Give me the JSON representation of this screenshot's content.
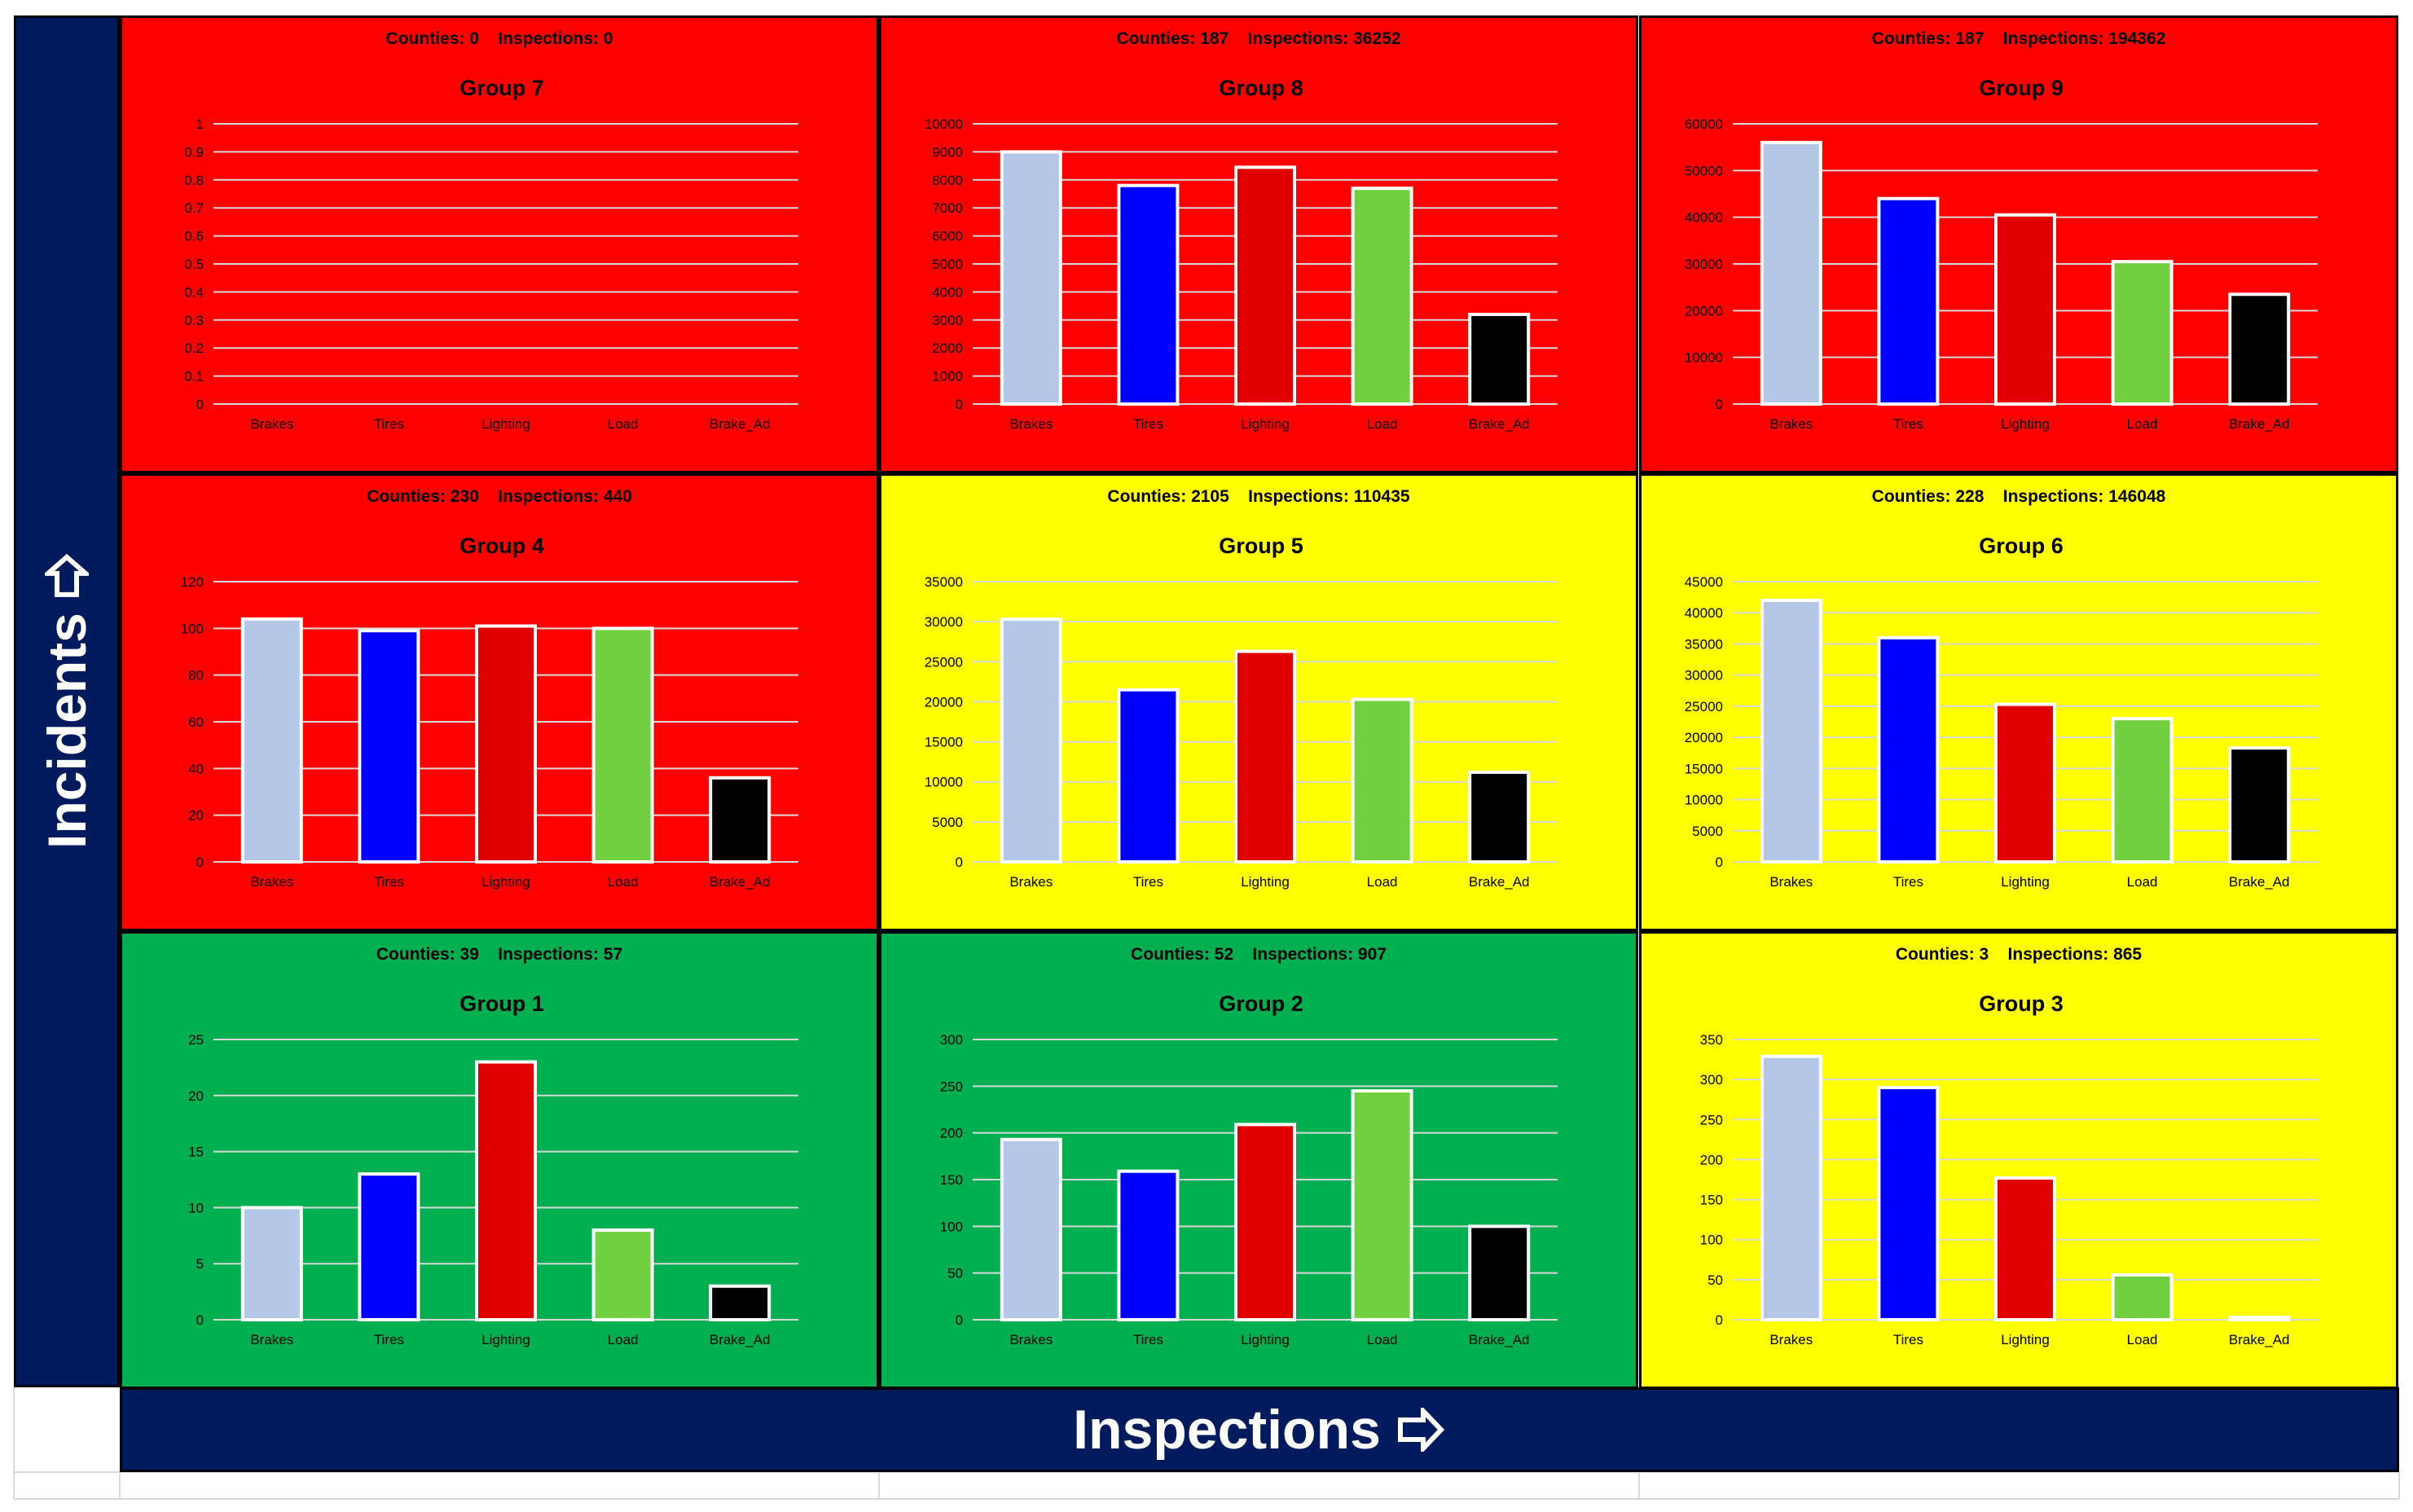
{
  "y_axis_title": "Incidents",
  "x_axis_title": "Inspections",
  "icons": {
    "y_arrow": "arrow-up-icon",
    "x_arrow": "arrow-right-icon"
  },
  "colors": {
    "red": "#FF0000",
    "yellow": "#FFFF00",
    "green": "#00B050",
    "navy": "#001A5E",
    "brakes": "#B4C7E7",
    "tires": "#0000FF",
    "lighting": "#E00000",
    "load": "#70D040",
    "brake_ad": "#000000"
  },
  "chart_data": [
    {
      "name": "group-7",
      "type": "bar",
      "bg": "#FF0000",
      "title": "Group 7",
      "header": {
        "counties_label": "Counties:",
        "counties": "0",
        "inspections_label": "Inspections:",
        "inspections": "0"
      },
      "categories": [
        "Brakes",
        "Tires",
        "Lighting",
        "Load",
        "Brake_Ad"
      ],
      "values": [
        0,
        0,
        0,
        0,
        0
      ],
      "ylim": [
        0,
        1
      ],
      "ticks": [
        "0",
        "0.1",
        "0.2",
        "0.3",
        "0.4",
        "0.5",
        "0.6",
        "0.7",
        "0.8",
        "0.9",
        "1"
      ]
    },
    {
      "name": "group-8",
      "type": "bar",
      "bg": "#FF0000",
      "title": "Group 8",
      "header": {
        "counties_label": "Counties:",
        "counties": "187",
        "inspections_label": "Inspections:",
        "inspections": "36252"
      },
      "categories": [
        "Brakes",
        "Tires",
        "Lighting",
        "Load",
        "Brake_Ad"
      ],
      "values": [
        9000,
        7800,
        8450,
        7700,
        3200
      ],
      "ylim": [
        0,
        10000
      ],
      "ticks": [
        "0",
        "1000",
        "2000",
        "3000",
        "4000",
        "5000",
        "6000",
        "7000",
        "8000",
        "9000",
        "10000"
      ]
    },
    {
      "name": "group-9",
      "type": "bar",
      "bg": "#FF0000",
      "title": "Group 9",
      "header": {
        "counties_label": "Counties:",
        "counties": "187",
        "inspections_label": "Inspections:",
        "inspections": "194362"
      },
      "categories": [
        "Brakes",
        "Tires",
        "Lighting",
        "Load",
        "Brake_Ad"
      ],
      "values": [
        56000,
        44000,
        40500,
        30500,
        23500
      ],
      "ylim": [
        0,
        60000
      ],
      "ticks": [
        "0",
        "10000",
        "20000",
        "30000",
        "40000",
        "50000",
        "60000"
      ]
    },
    {
      "name": "group-4",
      "type": "bar",
      "bg": "#FF0000",
      "title": "Group 4",
      "header": {
        "counties_label": "Counties:",
        "counties": "230",
        "inspections_label": "Inspections:",
        "inspections": "440"
      },
      "categories": [
        "Brakes",
        "Tires",
        "Lighting",
        "Load",
        "Brake_Ad"
      ],
      "values": [
        104,
        99,
        101,
        100,
        36
      ],
      "ylim": [
        0,
        120
      ],
      "ticks": [
        "0",
        "20",
        "40",
        "60",
        "80",
        "100",
        "120"
      ]
    },
    {
      "name": "group-5",
      "type": "bar",
      "bg": "#FFFF00",
      "title": "Group 5",
      "header": {
        "counties_label": "Counties:",
        "counties": "2105",
        "inspections_label": "Inspections:",
        "inspections": "110435"
      },
      "categories": [
        "Brakes",
        "Tires",
        "Lighting",
        "Load",
        "Brake_Ad"
      ],
      "values": [
        30300,
        21500,
        26300,
        20300,
        11200
      ],
      "ylim": [
        0,
        35000
      ],
      "ticks": [
        "0",
        "5000",
        "10000",
        "15000",
        "20000",
        "25000",
        "30000",
        "35000"
      ]
    },
    {
      "name": "group-6",
      "type": "bar",
      "bg": "#FFFF00",
      "title": "Group 6",
      "header": {
        "counties_label": "Counties:",
        "counties": "228",
        "inspections_label": "Inspections:",
        "inspections": "146048"
      },
      "categories": [
        "Brakes",
        "Tires",
        "Lighting",
        "Load",
        "Brake_Ad"
      ],
      "values": [
        42000,
        36000,
        25300,
        23000,
        18300
      ],
      "ylim": [
        0,
        45000
      ],
      "ticks": [
        "0",
        "5000",
        "10000",
        "15000",
        "20000",
        "25000",
        "30000",
        "35000",
        "40000",
        "45000"
      ]
    },
    {
      "name": "group-1",
      "type": "bar",
      "bg": "#00B050",
      "title": "Group 1",
      "header": {
        "counties_label": "Counties:",
        "counties": "39",
        "inspections_label": "Inspections:",
        "inspections": "57"
      },
      "categories": [
        "Brakes",
        "Tires",
        "Lighting",
        "Load",
        "Brake_Ad"
      ],
      "values": [
        10,
        13,
        23,
        8,
        3
      ],
      "ylim": [
        0,
        25
      ],
      "ticks": [
        "0",
        "5",
        "10",
        "15",
        "20",
        "25"
      ]
    },
    {
      "name": "group-2",
      "type": "bar",
      "bg": "#00B050",
      "title": "Group 2",
      "header": {
        "counties_label": "Counties:",
        "counties": "52",
        "inspections_label": "Inspections:",
        "inspections": "907"
      },
      "categories": [
        "Brakes",
        "Tires",
        "Lighting",
        "Load",
        "Brake_Ad"
      ],
      "values": [
        193,
        159,
        209,
        245,
        100
      ],
      "ylim": [
        0,
        300
      ],
      "ticks": [
        "0",
        "50",
        "100",
        "150",
        "200",
        "250",
        "300"
      ]
    },
    {
      "name": "group-3",
      "type": "bar",
      "bg": "#FFFF00",
      "title": "Group 3",
      "header": {
        "counties_label": "Counties:",
        "counties": "3",
        "inspections_label": "Inspections:",
        "inspections": "865"
      },
      "categories": [
        "Brakes",
        "Tires",
        "Lighting",
        "Load",
        "Brake_Ad"
      ],
      "values": [
        329,
        290,
        177,
        56,
        3
      ],
      "ylim": [
        0,
        350
      ],
      "ticks": [
        "0",
        "50",
        "100",
        "150",
        "200",
        "250",
        "300",
        "350"
      ]
    }
  ]
}
